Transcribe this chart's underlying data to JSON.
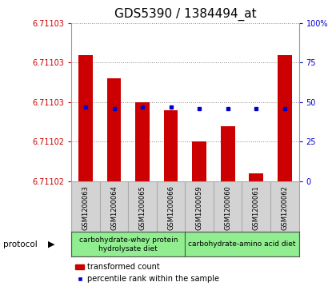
{
  "title": "GDS5390 / 1384494_at",
  "samples": [
    "GSM1200063",
    "GSM1200064",
    "GSM1200065",
    "GSM1200066",
    "GSM1200059",
    "GSM1200060",
    "GSM1200061",
    "GSM1200062"
  ],
  "red_values": [
    6.711034,
    6.711031,
    6.711028,
    6.711027,
    6.711023,
    6.711025,
    6.711019,
    6.711034
  ],
  "blue_values": [
    47,
    46,
    47,
    47,
    46,
    46,
    46,
    46
  ],
  "y_min": 6.711018,
  "y_max": 6.711038,
  "ytick_positions": [
    6.711018,
    6.711023,
    6.711028,
    6.711033,
    6.711038
  ],
  "ytick_labels": [
    "6.71102",
    "6.71102",
    "6.71103",
    "6.71103",
    "6.71103"
  ],
  "right_ticks": [
    0,
    25,
    50,
    75,
    100
  ],
  "right_tick_labels": [
    "0",
    "25",
    "50",
    "75",
    "100%"
  ],
  "grid_lines": [
    6.711023,
    6.711028,
    6.711033,
    6.711038
  ],
  "bar_color": "#CC0000",
  "dot_color": "#0000CC",
  "left_tick_color": "#CC0000",
  "right_tick_color": "#0000CC",
  "grid_color": "#888888",
  "bg_color": "#ffffff",
  "sample_area_color": "#d3d3d3",
  "sample_divider_color": "#aaaaaa",
  "proto_group1_label": "carbohydrate-whey protein\nhydrolysate diet",
  "proto_group2_label": "carbohydrate-amino acid diet",
  "proto_color": "#90EE90",
  "proto_border_color": "#555555",
  "protocol_label": "protocol",
  "legend_red_label": "transformed count",
  "legend_blue_label": "percentile rank within the sample",
  "title_fontsize": 11,
  "tick_fontsize": 7,
  "sample_fontsize": 6,
  "proto_fontsize": 6.5,
  "legend_fontsize": 7
}
